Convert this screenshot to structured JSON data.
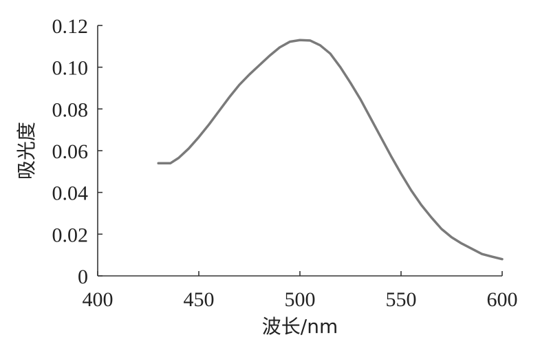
{
  "chart_data": {
    "type": "line",
    "title": "",
    "xlabel": "波长/nm",
    "ylabel": "吸光度",
    "xlim": [
      400,
      600
    ],
    "ylim": [
      0,
      0.12
    ],
    "xticks": [
      400,
      450,
      500,
      550,
      600
    ],
    "yticks": [
      0,
      0.02,
      0.04,
      0.06,
      0.08,
      0.1,
      0.12
    ],
    "xtick_labels": [
      "400",
      "450",
      "500",
      "550",
      "600"
    ],
    "ytick_labels": [
      "0",
      "0.02",
      "0.04",
      "0.06",
      "0.08",
      "0.10",
      "0.12"
    ],
    "grid": false,
    "legend": "none",
    "series": [
      {
        "color": "#7a7a7a",
        "x": [
          430,
          436,
          440,
          445,
          450,
          455,
          460,
          465,
          470,
          475,
          480,
          485,
          490,
          495,
          500,
          505,
          510,
          515,
          520,
          525,
          530,
          535,
          540,
          545,
          550,
          555,
          560,
          565,
          570,
          575,
          580,
          585,
          590,
          595,
          600
        ],
        "y": [
          0.054,
          0.054,
          0.0565,
          0.061,
          0.0665,
          0.0725,
          0.079,
          0.0855,
          0.0915,
          0.0965,
          0.101,
          0.1055,
          0.1095,
          0.1122,
          0.113,
          0.1128,
          0.1105,
          0.1065,
          0.1,
          0.0925,
          0.0845,
          0.0755,
          0.0665,
          0.0575,
          0.049,
          0.041,
          0.034,
          0.028,
          0.0225,
          0.0185,
          0.0155,
          0.013,
          0.0105,
          0.0092,
          0.008
        ]
      }
    ]
  }
}
